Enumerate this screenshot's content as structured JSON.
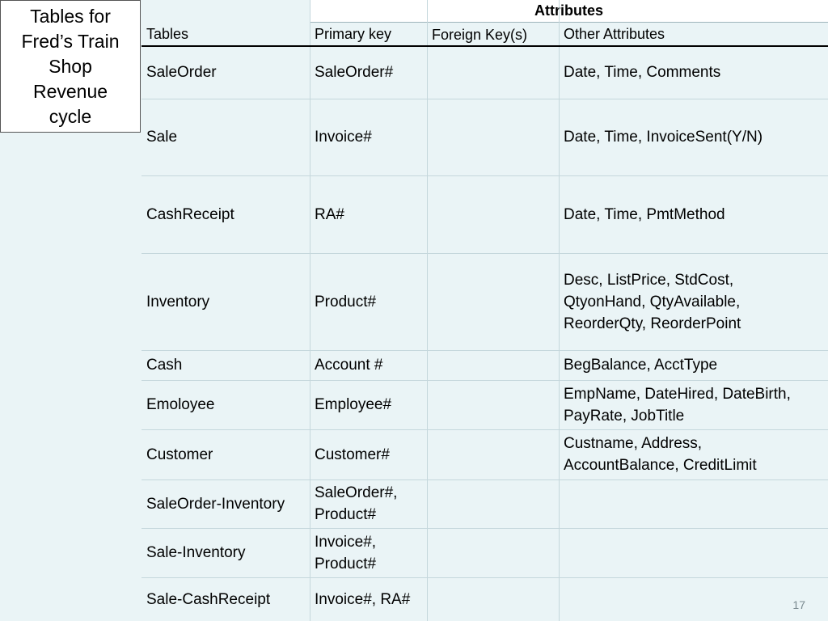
{
  "slide": {
    "title_lines": [
      "Tables for",
      "Fred’s Train",
      "Shop",
      "Revenue",
      "cycle"
    ],
    "page_number": "17"
  },
  "table": {
    "group_header": "Attributes",
    "columns": [
      "Tables",
      "Primary key",
      "Foreign Key(s)",
      "Other Attributes"
    ],
    "rows": [
      {
        "table": "SaleOrder",
        "pk": [
          "SaleOrder#"
        ],
        "fk": "",
        "other": [
          "Date, Time, Comments"
        ]
      },
      {
        "table": "Sale",
        "pk": [
          "Invoice#"
        ],
        "fk": "",
        "other": [
          "Date, Time, InvoiceSent(Y/N)"
        ]
      },
      {
        "table": "CashReceipt",
        "pk": [
          "RA#"
        ],
        "fk": "",
        "other": [
          "Date, Time, PmtMethod"
        ]
      },
      {
        "table": "Inventory",
        "pk": [
          "Product#"
        ],
        "fk": "",
        "other": [
          "Desc, ListPrice, StdCost,",
          "QtyonHand, QtyAvailable,",
          "ReorderQty, ReorderPoint"
        ]
      },
      {
        "table": "Cash",
        "pk": [
          "Account #"
        ],
        "fk": "",
        "other": [
          "BegBalance, AcctType"
        ]
      },
      {
        "table": "Emoloyee",
        "pk": [
          "Employee#"
        ],
        "fk": "",
        "other": [
          "EmpName, DateHired, DateBirth,",
          "PayRate, JobTitle"
        ]
      },
      {
        "table": "Customer",
        "pk": [
          "Customer#"
        ],
        "fk": "",
        "other": [
          "Custname, Address,",
          "AccountBalance, CreditLimit"
        ]
      },
      {
        "table": "SaleOrder-Inventory",
        "pk": [
          "SaleOrder#,",
          "Product#"
        ],
        "fk": "",
        "other": []
      },
      {
        "table": "Sale-Inventory",
        "pk": [
          "Invoice#,",
          "Product#"
        ],
        "fk": "",
        "other": []
      },
      {
        "table": "Sale-CashReceipt",
        "pk": [
          "Invoice#, RA#"
        ],
        "fk": "",
        "other": []
      }
    ]
  }
}
